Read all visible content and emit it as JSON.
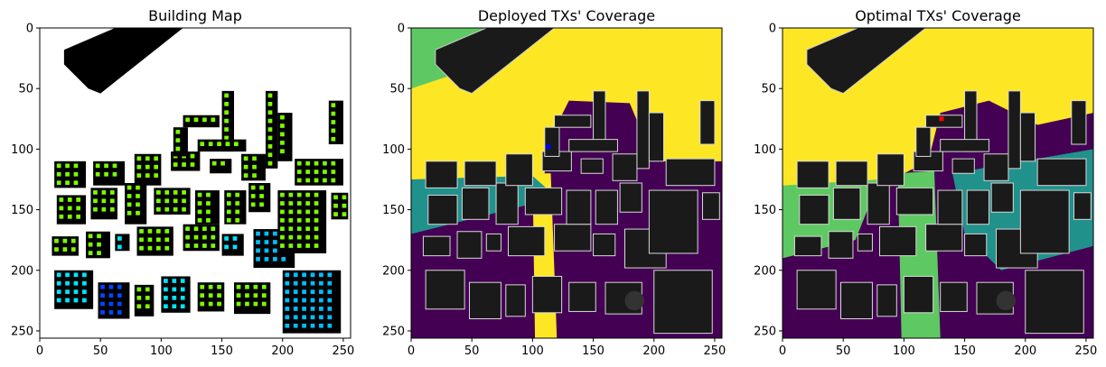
{
  "chart_data": [
    {
      "type": "heatmap",
      "title": "Building Map",
      "xlabel": "",
      "ylabel": "",
      "xlim": [
        0,
        256
      ],
      "ylim": [
        256,
        0
      ],
      "xticks": [
        0,
        50,
        100,
        150,
        200,
        250
      ],
      "yticks": [
        0,
        50,
        100,
        150,
        200,
        250
      ],
      "background_color": "#ffffff",
      "building_color": "#000000",
      "marker_colors": [
        "#7cfc00",
        "#00bfff",
        "#0047ff",
        "#00e5ff"
      ],
      "grid": false
    },
    {
      "type": "heatmap",
      "title": "Deployed TXs' Coverage",
      "xlabel": "",
      "ylabel": "",
      "xlim": [
        0,
        256
      ],
      "ylim": [
        256,
        0
      ],
      "xticks": [
        0,
        50,
        100,
        150,
        200,
        250
      ],
      "yticks": [
        0,
        50,
        100,
        150,
        200,
        250
      ],
      "colormap": [
        "#440154",
        "#21918c",
        "#5ec962",
        "#fde725"
      ],
      "building_color": "#1a1a1a",
      "tx_marker_color": "#0000ff",
      "grid": false
    },
    {
      "type": "heatmap",
      "title": "Optimal TXs' Coverage",
      "xlabel": "",
      "ylabel": "",
      "xlim": [
        0,
        256
      ],
      "ylim": [
        256,
        0
      ],
      "xticks": [
        0,
        50,
        100,
        150,
        200,
        250
      ],
      "yticks": [
        0,
        50,
        100,
        150,
        200,
        250
      ],
      "colormap": [
        "#440154",
        "#21918c",
        "#5ec962",
        "#fde725"
      ],
      "building_color": "#1a1a1a",
      "tx_marker_color": "#ff0000",
      "tx_position": [
        131,
        75
      ],
      "grid": false
    }
  ]
}
